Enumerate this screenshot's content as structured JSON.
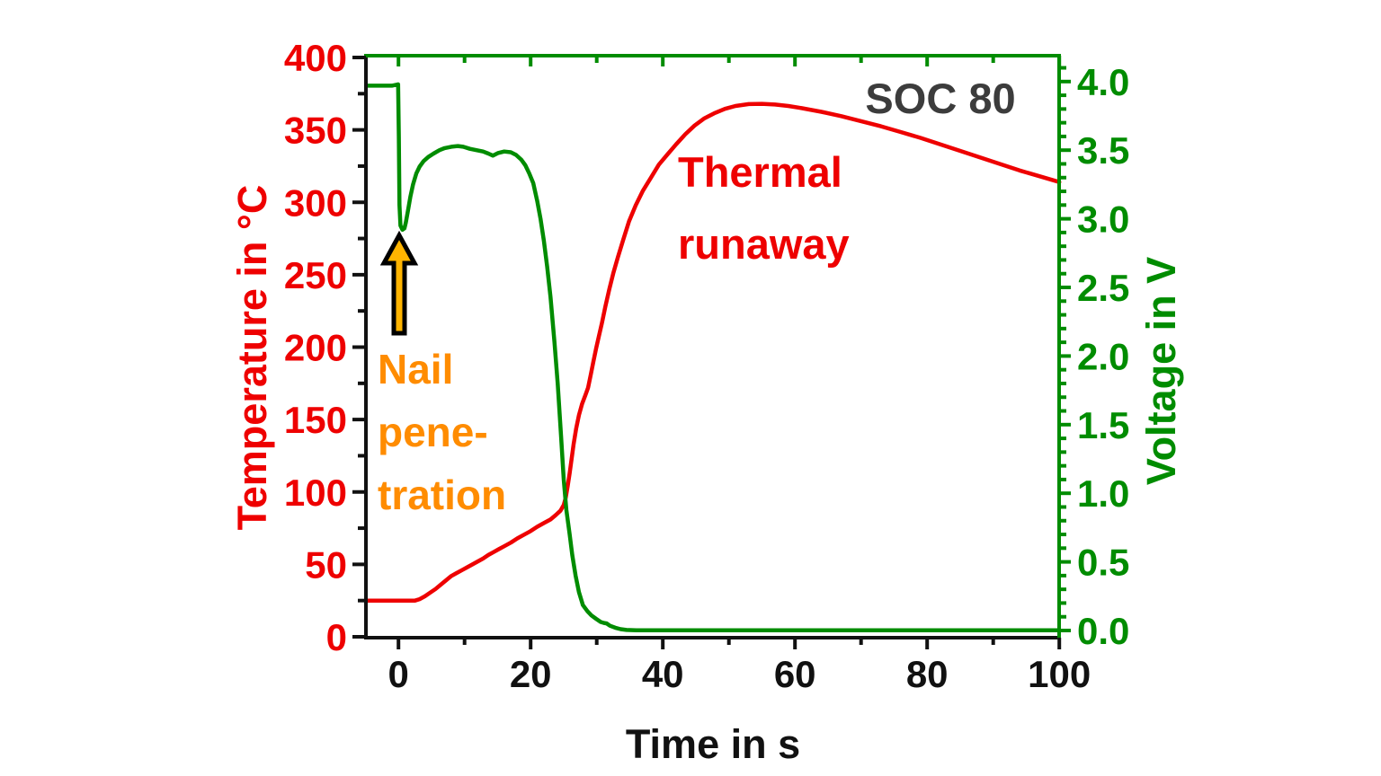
{
  "chart_data": {
    "type": "line",
    "xlabel": "Time in s",
    "ylabel_left": "Temperature in °C",
    "ylabel_right": "Voltage in V",
    "x_range": [
      -5,
      100
    ],
    "y_left_range": [
      0,
      400
    ],
    "y_right_range": [
      0,
      4
    ],
    "grid": false,
    "legend_position": "none",
    "x_ticks_major": [
      0,
      20,
      40,
      60,
      80,
      100
    ],
    "x_ticks_minor": [
      10,
      30,
      50,
      70,
      90
    ],
    "y_left_ticks_major": [
      0,
      50,
      100,
      150,
      200,
      250,
      300,
      350,
      400
    ],
    "y_left_ticks_minor": [
      25,
      75,
      125,
      175,
      225,
      275,
      325,
      375
    ],
    "y_right_ticks_major": [
      0,
      0.5,
      1,
      1.5,
      2,
      2.5,
      3,
      3.5,
      4
    ],
    "y_right_tick_labels": [
      "0.0",
      "0.5",
      "1.0",
      "1.5",
      "2.0",
      "2.5",
      "3.0",
      "3.5",
      "4.0"
    ],
    "y_right_ticks_minor": [
      0.1,
      0.2,
      0.3,
      0.4,
      0.6,
      0.7,
      0.8,
      0.9,
      1.1,
      1.2,
      1.3,
      1.4,
      1.6,
      1.7,
      1.8,
      1.9,
      2.1,
      2.2,
      2.3,
      2.4,
      2.6,
      2.7,
      2.8,
      2.9,
      3.1,
      3.2,
      3.3,
      3.4,
      3.6,
      3.7,
      3.8,
      3.9,
      4.1
    ],
    "series": [
      {
        "name": "Temperature",
        "axis": "left",
        "color": "#ee0000",
        "points": [
          [
            -4.9,
            25
          ],
          [
            0,
            25
          ],
          [
            2.5,
            25
          ],
          [
            3.2,
            26
          ],
          [
            4,
            28
          ],
          [
            4.8,
            30.5
          ],
          [
            5.6,
            33
          ],
          [
            6.4,
            36
          ],
          [
            7.2,
            39
          ],
          [
            8,
            42
          ],
          [
            8.8,
            44
          ],
          [
            9.6,
            46
          ],
          [
            10.4,
            48
          ],
          [
            11.2,
            50
          ],
          [
            12,
            52
          ],
          [
            12.8,
            54
          ],
          [
            13.6,
            56.5
          ],
          [
            14.4,
            58.5
          ],
          [
            15.2,
            60.5
          ],
          [
            16,
            62.5
          ],
          [
            17,
            65
          ],
          [
            18,
            68
          ],
          [
            19,
            70.5
          ],
          [
            20,
            73
          ],
          [
            21,
            76
          ],
          [
            22,
            78.5
          ],
          [
            23,
            81
          ],
          [
            23.8,
            84
          ],
          [
            24.5,
            87
          ],
          [
            25,
            91
          ],
          [
            25.3,
            96
          ],
          [
            25.6,
            104
          ],
          [
            25.9,
            113
          ],
          [
            26.2,
            123
          ],
          [
            26.5,
            133
          ],
          [
            26.9,
            144
          ],
          [
            27.3,
            153
          ],
          [
            27.8,
            161
          ],
          [
            28.3,
            167
          ],
          [
            28.7,
            172
          ],
          [
            29.1,
            181
          ],
          [
            29.5,
            190
          ],
          [
            29.9,
            199
          ],
          [
            30.3,
            207
          ],
          [
            30.8,
            217
          ],
          [
            31.3,
            228
          ],
          [
            31.9,
            240
          ],
          [
            32.5,
            251
          ],
          [
            33.2,
            262
          ],
          [
            34,
            274
          ],
          [
            34.9,
            287
          ],
          [
            35.9,
            298
          ],
          [
            37,
            308
          ],
          [
            38.2,
            317
          ],
          [
            39.4,
            326
          ],
          [
            40.7,
            333
          ],
          [
            42,
            340
          ],
          [
            43.4,
            347
          ],
          [
            44.8,
            353
          ],
          [
            46.3,
            358
          ],
          [
            47.8,
            361.5
          ],
          [
            49.4,
            364.5
          ],
          [
            51,
            366.5
          ],
          [
            53,
            367.8
          ],
          [
            55,
            368
          ],
          [
            57,
            367.5
          ],
          [
            59,
            366.5
          ],
          [
            61,
            365
          ],
          [
            64,
            362.5
          ],
          [
            67,
            359.5
          ],
          [
            70,
            356
          ],
          [
            73,
            352.5
          ],
          [
            76,
            348.5
          ],
          [
            79,
            344.5
          ],
          [
            82,
            340
          ],
          [
            85,
            335.5
          ],
          [
            88,
            331
          ],
          [
            91,
            326.5
          ],
          [
            94,
            322
          ],
          [
            97,
            318
          ],
          [
            100,
            314
          ]
        ]
      },
      {
        "name": "Voltage",
        "axis": "right",
        "color": "#008c00",
        "points": [
          [
            -4.9,
            3.97
          ],
          [
            -3,
            3.97
          ],
          [
            -1,
            3.97
          ],
          [
            -0.05,
            3.98
          ],
          [
            0.05,
            3.6
          ],
          [
            0.15,
            3.1
          ],
          [
            0.3,
            2.95
          ],
          [
            0.6,
            2.92
          ],
          [
            0.9,
            2.93
          ],
          [
            1.1,
            2.97
          ],
          [
            1.4,
            3.05
          ],
          [
            1.8,
            3.16
          ],
          [
            2.2,
            3.25
          ],
          [
            2.7,
            3.33
          ],
          [
            3.2,
            3.38
          ],
          [
            3.8,
            3.42
          ],
          [
            4.5,
            3.45
          ],
          [
            5.3,
            3.475
          ],
          [
            6.2,
            3.5
          ],
          [
            7,
            3.515
          ],
          [
            8,
            3.525
          ],
          [
            9,
            3.53
          ],
          [
            9.8,
            3.525
          ],
          [
            10.8,
            3.51
          ],
          [
            11.8,
            3.5
          ],
          [
            12.8,
            3.49
          ],
          [
            13.6,
            3.475
          ],
          [
            14.3,
            3.46
          ],
          [
            15.1,
            3.48
          ],
          [
            16,
            3.49
          ],
          [
            17,
            3.485
          ],
          [
            17.8,
            3.465
          ],
          [
            18.6,
            3.43
          ],
          [
            19.2,
            3.39
          ],
          [
            19.8,
            3.33
          ],
          [
            20.4,
            3.26
          ],
          [
            21,
            3.13
          ],
          [
            21.5,
            3.0
          ],
          [
            22,
            2.84
          ],
          [
            22.5,
            2.65
          ],
          [
            23,
            2.43
          ],
          [
            23.6,
            2.1
          ],
          [
            24.1,
            1.8
          ],
          [
            24.6,
            1.42
          ],
          [
            25,
            1.1
          ],
          [
            25.4,
            0.88
          ],
          [
            25.9,
            0.7
          ],
          [
            26.3,
            0.55
          ],
          [
            26.8,
            0.4
          ],
          [
            27.3,
            0.28
          ],
          [
            27.9,
            0.185
          ],
          [
            28.6,
            0.14
          ],
          [
            29.2,
            0.11
          ],
          [
            29.9,
            0.085
          ],
          [
            30.6,
            0.062
          ],
          [
            31.1,
            0.055
          ],
          [
            31.5,
            0.052
          ],
          [
            32,
            0.035
          ],
          [
            32.8,
            0.02
          ],
          [
            33.6,
            0.01
          ],
          [
            34.5,
            0.004
          ],
          [
            36,
            0.002
          ],
          [
            100,
            0.002
          ]
        ]
      }
    ]
  },
  "annotations": {
    "soc": {
      "text": "SOC 80",
      "color": "#3c3c3c"
    },
    "thermal": {
      "line1": "Thermal",
      "line2": "runaway",
      "color": "#ee0000"
    },
    "nail": {
      "line1": "Nail",
      "line2": "pene-",
      "line3": "tration",
      "color": "#ff8c00"
    },
    "arrow": {
      "meaning": "nail-penetration-time-marker",
      "fill": "#ffb400",
      "outline": "#000000"
    }
  },
  "colors": {
    "temperature_red": "#ee0000",
    "voltage_green": "#008c00",
    "axis_black": "#111111",
    "nail_orange": "#ff8c00",
    "arrow_gold": "#ffb400",
    "soc_gray": "#3c3c3c",
    "background": "#ffffff"
  }
}
